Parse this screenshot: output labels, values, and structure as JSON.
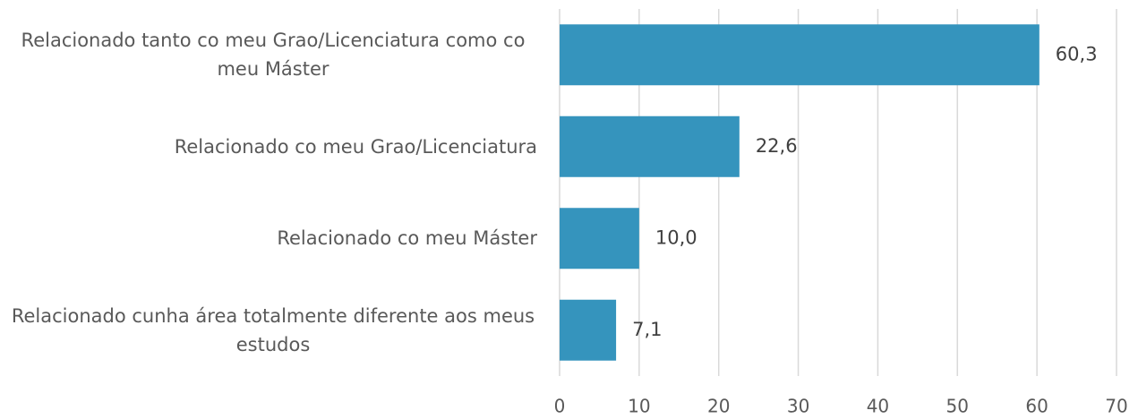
{
  "chart_data": {
    "type": "barh",
    "categories": [
      "Relacionado tanto co meu Grao/Licenciatura como co meu Máster",
      "Relacionado co meu Grao/Licenciatura",
      "Relacionado co meu Máster",
      "Relacionado cunha área totalmente diferente aos meus estudos"
    ],
    "values": [
      60.3,
      22.6,
      10.0,
      7.1
    ],
    "value_labels": [
      "60,3",
      "22,6",
      "10,0",
      "7,1"
    ],
    "color": "#3594bd",
    "xlim": [
      0,
      70
    ],
    "xticks": [
      0,
      10,
      20,
      30,
      40,
      50,
      60,
      70
    ],
    "grid": true
  }
}
